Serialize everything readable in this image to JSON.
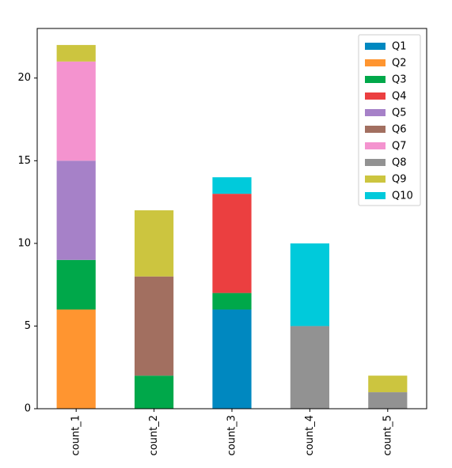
{
  "chart_data": {
    "type": "bar",
    "stacked": true,
    "categories": [
      "count_1",
      "count_2",
      "count_3",
      "count_4",
      "count_5"
    ],
    "series": [
      {
        "name": "Q1",
        "color": "#0088c0",
        "values": [
          0,
          0,
          6,
          0,
          0
        ]
      },
      {
        "name": "Q2",
        "color": "#ff9530",
        "values": [
          6,
          0,
          0,
          0,
          0
        ]
      },
      {
        "name": "Q3",
        "color": "#00a84a",
        "values": [
          3,
          2,
          1,
          0,
          0
        ]
      },
      {
        "name": "Q4",
        "color": "#eb3f40",
        "values": [
          0,
          0,
          6,
          0,
          0
        ]
      },
      {
        "name": "Q5",
        "color": "#a681c8",
        "values": [
          6,
          0,
          0,
          0,
          0
        ]
      },
      {
        "name": "Q6",
        "color": "#a26f60",
        "values": [
          0,
          6,
          0,
          0,
          0
        ]
      },
      {
        "name": "Q7",
        "color": "#f493cf",
        "values": [
          6,
          0,
          0,
          0,
          0
        ]
      },
      {
        "name": "Q8",
        "color": "#929292",
        "values": [
          0,
          0,
          0,
          5,
          1
        ]
      },
      {
        "name": "Q9",
        "color": "#ccc53f",
        "values": [
          1,
          4,
          0,
          0,
          1
        ]
      },
      {
        "name": "Q10",
        "color": "#00cadb",
        "values": [
          0,
          0,
          1,
          5,
          0
        ]
      }
    ],
    "ylim": [
      0,
      23
    ],
    "yticks": [
      0,
      5,
      10,
      15,
      20
    ],
    "grid": false,
    "legend": "top-right",
    "xtick_rotation": "vertical"
  }
}
